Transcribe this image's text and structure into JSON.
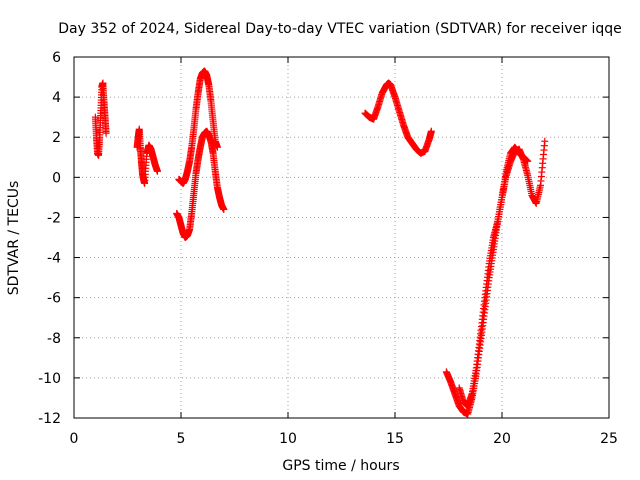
{
  "chart_data": {
    "type": "scatter",
    "title": "Day 352 of 2024, Sidereal Day-to-day VTEC variation (SDTVAR) for receiver iqqe",
    "xlabel": "GPS time / hours",
    "ylabel": "SDTVAR / TECUs",
    "xlim": [
      0,
      25
    ],
    "ylim": [
      -12,
      6
    ],
    "xticks": [
      0,
      5,
      10,
      15,
      20,
      25
    ],
    "yticks": [
      -12,
      -10,
      -8,
      -6,
      -4,
      -2,
      0,
      2,
      4,
      6
    ],
    "grid": true,
    "marker": "+",
    "color": "#ff0000",
    "segments": [
      {
        "name": "seg1",
        "x": [
          1.0,
          1.05,
          1.1,
          1.15,
          1.2,
          1.25,
          1.3,
          1.35,
          1.4,
          1.45,
          1.5
        ],
        "y": [
          3.0,
          2.0,
          1.2,
          1.1,
          2.0,
          3.2,
          4.5,
          4.7,
          3.8,
          3.0,
          2.2
        ]
      },
      {
        "name": "seg2",
        "x": [
          2.95,
          3.0,
          3.05,
          3.1,
          3.15,
          3.2,
          3.25,
          3.3,
          3.4,
          3.5,
          3.6,
          3.7,
          3.8,
          3.9
        ],
        "y": [
          1.5,
          2.0,
          2.4,
          1.5,
          0.8,
          0.2,
          -0.1,
          -0.3,
          1.2,
          1.6,
          1.4,
          1.0,
          0.6,
          0.3
        ]
      },
      {
        "name": "seg3",
        "x": [
          4.8,
          4.9,
          5.0,
          5.1,
          5.2,
          5.3,
          5.4,
          5.5,
          5.6,
          5.7,
          5.8,
          5.9,
          6.0,
          6.1,
          6.2,
          6.3,
          6.4,
          6.5,
          6.6,
          6.7,
          6.8,
          6.9,
          7.0
        ],
        "y": [
          -1.8,
          -2.0,
          -2.4,
          -2.8,
          -3.0,
          -2.9,
          -2.6,
          -1.8,
          -0.8,
          0.2,
          0.9,
          1.5,
          2.0,
          2.2,
          2.3,
          2.1,
          1.8,
          1.2,
          0.3,
          -0.5,
          -1.0,
          -1.4,
          -1.6
        ]
      },
      {
        "name": "seg4",
        "x": [
          4.9,
          5.0,
          5.1,
          5.2,
          5.3,
          5.4,
          5.5,
          5.6,
          5.7,
          5.8,
          5.9,
          6.0,
          6.1,
          6.2,
          6.3,
          6.4,
          6.5,
          6.6,
          6.7
        ],
        "y": [
          -0.1,
          -0.2,
          -0.3,
          -0.1,
          0.3,
          0.8,
          1.5,
          2.4,
          3.4,
          4.2,
          4.9,
          5.2,
          5.3,
          5.1,
          4.6,
          3.8,
          2.8,
          1.8,
          1.5
        ]
      },
      {
        "name": "seg5",
        "x": [
          13.6,
          13.8,
          14.0,
          14.2,
          14.4,
          14.6,
          14.7,
          14.8,
          15.0,
          15.2,
          15.4,
          15.6,
          15.8,
          16.0,
          16.2,
          16.4,
          16.6,
          16.7
        ],
        "y": [
          3.2,
          3.0,
          2.9,
          3.5,
          4.2,
          4.6,
          4.7,
          4.6,
          4.0,
          3.3,
          2.6,
          2.0,
          1.7,
          1.4,
          1.2,
          1.3,
          1.9,
          2.3
        ]
      },
      {
        "name": "seg6",
        "x": [
          17.4,
          17.6,
          17.8,
          18.0,
          18.2,
          18.4,
          18.6,
          18.8,
          19.0,
          19.2,
          19.4,
          19.6,
          19.8,
          20.0,
          20.2,
          20.4,
          20.6,
          20.8,
          21.0,
          21.2,
          21.4,
          21.6,
          21.8,
          22.0
        ],
        "y": [
          -9.7,
          -10.2,
          -10.8,
          -11.4,
          -11.7,
          -11.8,
          -11.0,
          -9.8,
          -8.2,
          -6.6,
          -5.0,
          -3.6,
          -2.2,
          -1.0,
          0.1,
          0.8,
          1.3,
          1.4,
          0.9,
          0.1,
          -0.9,
          -1.3,
          -0.4,
          1.8
        ]
      },
      {
        "name": "seg7",
        "x": [
          18.0,
          18.2,
          18.4,
          18.6,
          18.8,
          19.0,
          19.2,
          19.4,
          19.6,
          19.8,
          20.0,
          20.2,
          20.4,
          20.6,
          20.8,
          21.0,
          21.2
        ],
        "y": [
          -10.5,
          -11.2,
          -11.4,
          -10.8,
          -9.5,
          -7.8,
          -6.0,
          -4.3,
          -3.0,
          -2.2,
          -1.0,
          0.3,
          1.2,
          1.5,
          1.2,
          1.0,
          0.8
        ]
      }
    ]
  }
}
